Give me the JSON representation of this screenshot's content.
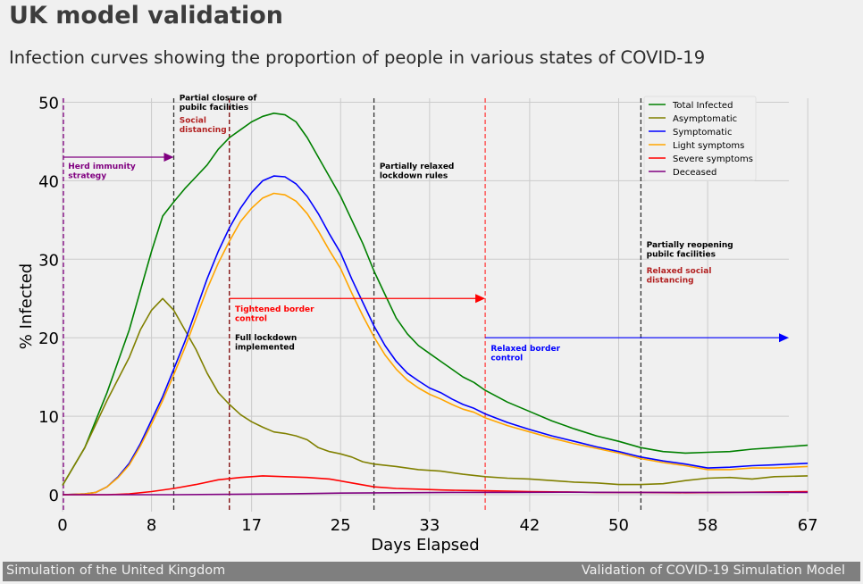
{
  "title": "UK model validation",
  "subtitle": "Infection curves showing the proportion of people in various states of COVID-19",
  "footer": {
    "left": "Simulation of the United Kingdom",
    "right": "Validation of COVID-19 Simulation Model"
  },
  "chart_data": {
    "type": "line",
    "xlabel": "Days Elapsed",
    "ylabel": "% Infected",
    "xlim": [
      0,
      67
    ],
    "ylim": [
      0,
      50
    ],
    "xticks": [
      0,
      8,
      17,
      25,
      33,
      42,
      50,
      58,
      67
    ],
    "yticks": [
      0,
      10,
      20,
      30,
      40,
      50
    ],
    "grid": true,
    "legend_position": "top-right",
    "series": [
      {
        "name": "Total Infected",
        "color": "#008000",
        "points": [
          [
            0,
            1.2
          ],
          [
            2,
            6
          ],
          [
            4,
            13
          ],
          [
            6,
            21
          ],
          [
            7,
            26
          ],
          [
            8,
            31
          ],
          [
            9,
            35.5
          ],
          [
            10,
            37.3
          ],
          [
            11,
            39
          ],
          [
            12,
            40.5
          ],
          [
            13,
            42
          ],
          [
            14,
            44
          ],
          [
            15,
            45.5
          ],
          [
            16,
            46.5
          ],
          [
            17,
            47.5
          ],
          [
            18,
            48.2
          ],
          [
            19,
            48.6
          ],
          [
            20,
            48.4
          ],
          [
            21,
            47.5
          ],
          [
            22,
            45.5
          ],
          [
            23,
            43
          ],
          [
            24,
            40.5
          ],
          [
            25,
            38
          ],
          [
            26,
            35
          ],
          [
            27,
            32
          ],
          [
            28,
            28.5
          ],
          [
            29,
            25.5
          ],
          [
            30,
            22.5
          ],
          [
            31,
            20.5
          ],
          [
            32,
            19
          ],
          [
            33,
            18
          ],
          [
            34,
            17
          ],
          [
            35,
            16
          ],
          [
            36,
            15
          ],
          [
            37,
            14.3
          ],
          [
            38,
            13.3
          ],
          [
            40,
            11.8
          ],
          [
            42,
            10.6
          ],
          [
            44,
            9.4
          ],
          [
            46,
            8.4
          ],
          [
            48,
            7.5
          ],
          [
            50,
            6.8
          ],
          [
            52,
            6
          ],
          [
            54,
            5.5
          ],
          [
            56,
            5.3
          ],
          [
            58,
            5.4
          ],
          [
            60,
            5.5
          ],
          [
            62,
            5.8
          ],
          [
            64,
            6
          ],
          [
            67,
            6.3
          ]
        ]
      },
      {
        "name": "Asymptomatic",
        "color": "#808000",
        "points": [
          [
            0,
            1.2
          ],
          [
            2,
            6
          ],
          [
            4,
            12
          ],
          [
            6,
            17.5
          ],
          [
            7,
            21
          ],
          [
            8,
            23.5
          ],
          [
            9,
            25
          ],
          [
            10,
            23.5
          ],
          [
            11,
            21
          ],
          [
            12,
            18.5
          ],
          [
            13,
            15.5
          ],
          [
            14,
            13
          ],
          [
            15,
            11.5
          ],
          [
            16,
            10.2
          ],
          [
            17,
            9.3
          ],
          [
            18,
            8.6
          ],
          [
            19,
            8
          ],
          [
            20,
            7.8
          ],
          [
            21,
            7.5
          ],
          [
            22,
            7
          ],
          [
            23,
            6
          ],
          [
            24,
            5.5
          ],
          [
            25,
            5.2
          ],
          [
            26,
            4.8
          ],
          [
            27,
            4.2
          ],
          [
            28,
            3.9
          ],
          [
            30,
            3.6
          ],
          [
            32,
            3.2
          ],
          [
            34,
            3
          ],
          [
            36,
            2.6
          ],
          [
            38,
            2.3
          ],
          [
            40,
            2.1
          ],
          [
            42,
            2
          ],
          [
            44,
            1.8
          ],
          [
            46,
            1.6
          ],
          [
            48,
            1.5
          ],
          [
            50,
            1.3
          ],
          [
            52,
            1.3
          ],
          [
            54,
            1.4
          ],
          [
            56,
            1.8
          ],
          [
            58,
            2.1
          ],
          [
            60,
            2.2
          ],
          [
            62,
            2
          ],
          [
            64,
            2.3
          ],
          [
            67,
            2.4
          ]
        ]
      },
      {
        "name": "Symptomatic",
        "color": "#0000ff",
        "points": [
          [
            0,
            0
          ],
          [
            2,
            0.1
          ],
          [
            3,
            0.3
          ],
          [
            4,
            1
          ],
          [
            5,
            2.3
          ],
          [
            6,
            4
          ],
          [
            7,
            6.5
          ],
          [
            8,
            9.5
          ],
          [
            9,
            12.5
          ],
          [
            10,
            16
          ],
          [
            11,
            19.5
          ],
          [
            12,
            23.5
          ],
          [
            13,
            27.5
          ],
          [
            14,
            31
          ],
          [
            15,
            34
          ],
          [
            16,
            36.5
          ],
          [
            17,
            38.5
          ],
          [
            18,
            40
          ],
          [
            19,
            40.6
          ],
          [
            20,
            40.5
          ],
          [
            21,
            39.6
          ],
          [
            22,
            38
          ],
          [
            23,
            35.8
          ],
          [
            24,
            33.2
          ],
          [
            25,
            30.8
          ],
          [
            26,
            27.5
          ],
          [
            27,
            24.5
          ],
          [
            28,
            21.5
          ],
          [
            29,
            19
          ],
          [
            30,
            17
          ],
          [
            31,
            15.5
          ],
          [
            32,
            14.5
          ],
          [
            33,
            13.6
          ],
          [
            34,
            13
          ],
          [
            35,
            12.2
          ],
          [
            36,
            11.5
          ],
          [
            37,
            11
          ],
          [
            38,
            10.3
          ],
          [
            40,
            9.2
          ],
          [
            42,
            8.3
          ],
          [
            44,
            7.5
          ],
          [
            46,
            6.8
          ],
          [
            48,
            6.1
          ],
          [
            50,
            5.5
          ],
          [
            52,
            4.8
          ],
          [
            54,
            4.3
          ],
          [
            56,
            3.9
          ],
          [
            58,
            3.4
          ],
          [
            60,
            3.5
          ],
          [
            62,
            3.7
          ],
          [
            64,
            3.8
          ],
          [
            67,
            4
          ]
        ]
      },
      {
        "name": "Light symptoms",
        "color": "#ffa500",
        "points": [
          [
            0,
            0
          ],
          [
            2,
            0.1
          ],
          [
            3,
            0.3
          ],
          [
            4,
            1
          ],
          [
            5,
            2.2
          ],
          [
            6,
            3.8
          ],
          [
            7,
            6.2
          ],
          [
            8,
            9
          ],
          [
            9,
            12
          ],
          [
            10,
            15.3
          ],
          [
            11,
            18.7
          ],
          [
            12,
            22.5
          ],
          [
            13,
            26.2
          ],
          [
            14,
            29.5
          ],
          [
            15,
            32.3
          ],
          [
            16,
            34.8
          ],
          [
            17,
            36.5
          ],
          [
            18,
            37.8
          ],
          [
            19,
            38.4
          ],
          [
            20,
            38.2
          ],
          [
            21,
            37.4
          ],
          [
            22,
            35.8
          ],
          [
            23,
            33.6
          ],
          [
            24,
            31.1
          ],
          [
            25,
            28.8
          ],
          [
            26,
            25.7
          ],
          [
            27,
            22.8
          ],
          [
            28,
            20.1
          ],
          [
            29,
            17.8
          ],
          [
            30,
            16
          ],
          [
            31,
            14.6
          ],
          [
            32,
            13.6
          ],
          [
            33,
            12.8
          ],
          [
            34,
            12.2
          ],
          [
            35,
            11.5
          ],
          [
            36,
            10.9
          ],
          [
            37,
            10.5
          ],
          [
            38,
            9.8
          ],
          [
            40,
            8.8
          ],
          [
            42,
            8
          ],
          [
            44,
            7.2
          ],
          [
            46,
            6.5
          ],
          [
            48,
            5.9
          ],
          [
            50,
            5.3
          ],
          [
            52,
            4.6
          ],
          [
            54,
            4.1
          ],
          [
            56,
            3.7
          ],
          [
            58,
            3.2
          ],
          [
            60,
            3.2
          ],
          [
            62,
            3.4
          ],
          [
            64,
            3.4
          ],
          [
            67,
            3.6
          ]
        ]
      },
      {
        "name": "Severe symptoms",
        "color": "#ff0000",
        "points": [
          [
            0,
            0
          ],
          [
            4,
            0
          ],
          [
            6,
            0.1
          ],
          [
            8,
            0.4
          ],
          [
            10,
            0.8
          ],
          [
            12,
            1.3
          ],
          [
            14,
            1.9
          ],
          [
            16,
            2.2
          ],
          [
            18,
            2.4
          ],
          [
            20,
            2.3
          ],
          [
            22,
            2.2
          ],
          [
            24,
            2
          ],
          [
            26,
            1.5
          ],
          [
            28,
            1
          ],
          [
            30,
            0.8
          ],
          [
            32,
            0.7
          ],
          [
            34,
            0.6
          ],
          [
            36,
            0.55
          ],
          [
            38,
            0.5
          ],
          [
            40,
            0.45
          ],
          [
            42,
            0.4
          ],
          [
            45,
            0.35
          ],
          [
            48,
            0.3
          ],
          [
            52,
            0.3
          ],
          [
            56,
            0.25
          ],
          [
            60,
            0.3
          ],
          [
            64,
            0.35
          ],
          [
            67,
            0.4
          ]
        ]
      },
      {
        "name": "Deceased",
        "color": "#800080",
        "points": [
          [
            0,
            0
          ],
          [
            10,
            0
          ],
          [
            15,
            0.05
          ],
          [
            20,
            0.1
          ],
          [
            25,
            0.2
          ],
          [
            30,
            0.25
          ],
          [
            35,
            0.3
          ],
          [
            40,
            0.3
          ],
          [
            45,
            0.32
          ],
          [
            50,
            0.3
          ],
          [
            55,
            0.3
          ],
          [
            60,
            0.3
          ],
          [
            67,
            0.3
          ]
        ]
      }
    ],
    "vlines": [
      {
        "x": 0,
        "color": "#800080"
      },
      {
        "x": 10,
        "color": "#333333"
      },
      {
        "x": 15,
        "color": "#7a0000"
      },
      {
        "x": 28,
        "color": "#333333"
      },
      {
        "x": 38,
        "color": "#ff4040"
      },
      {
        "x": 52,
        "color": "#333333"
      }
    ],
    "arrows": [
      {
        "x1": 0,
        "x2": 10,
        "y": 43,
        "color": "#800080"
      },
      {
        "x1": 15,
        "x2": 38,
        "y": 25,
        "color": "#ff0000"
      },
      {
        "x1": 38,
        "x2": 68,
        "y": 20,
        "color": "#0000ff"
      }
    ],
    "annotations": [
      {
        "text": [
          "Herd immunity",
          "strategy"
        ],
        "x": 0.5,
        "y": 41.5,
        "color": "#800080"
      },
      {
        "text": [
          "Partial closure of",
          "pubilc facilities"
        ],
        "x": 10.5,
        "y": 50.2,
        "color": "#000000"
      },
      {
        "text": [
          "Social",
          "distancing"
        ],
        "x": 10.5,
        "y": 47.4,
        "color": "#b22222"
      },
      {
        "text": [
          "Partially relaxed",
          "lockdown rules"
        ],
        "x": 28.5,
        "y": 41.5,
        "color": "#000000"
      },
      {
        "text": [
          "Tightened border",
          "control"
        ],
        "x": 15.5,
        "y": 23.3,
        "color": "#ff0000"
      },
      {
        "text": [
          "Full lockdown",
          "implemented"
        ],
        "x": 15.5,
        "y": 19.7,
        "color": "#000000"
      },
      {
        "text": [
          "Relaxed border",
          "control"
        ],
        "x": 38.5,
        "y": 18.3,
        "color": "#0000ff"
      },
      {
        "text": [
          "Partially reopening",
          "pubilc facilities"
        ],
        "x": 52.5,
        "y": 31.5,
        "color": "#000000"
      },
      {
        "text": [
          "Relaxed social",
          "distancing"
        ],
        "x": 52.5,
        "y": 28.2,
        "color": "#b22222"
      }
    ]
  }
}
